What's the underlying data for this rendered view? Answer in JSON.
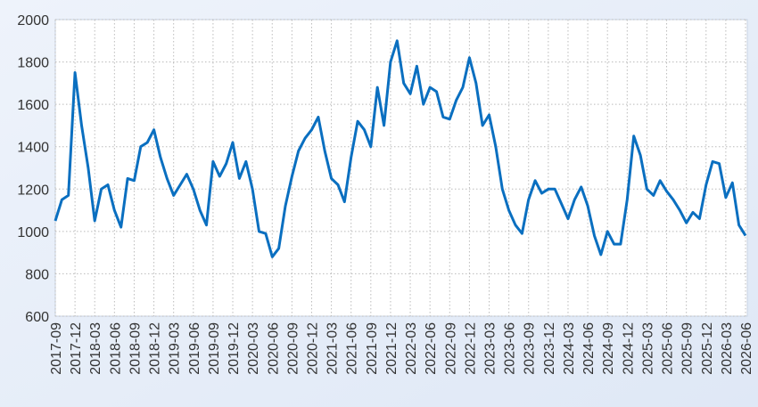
{
  "chart_data": {
    "type": "line",
    "color": "#0a6fc0",
    "grid": true,
    "x": [
      "2017-09",
      "2017-10",
      "2017-11",
      "2017-12",
      "2018-01",
      "2018-02",
      "2018-03",
      "2018-04",
      "2018-05",
      "2018-06",
      "2018-07",
      "2018-08",
      "2018-09",
      "2018-10",
      "2018-11",
      "2018-12",
      "2019-01",
      "2019-02",
      "2019-03",
      "2019-04",
      "2019-05",
      "2019-06",
      "2019-07",
      "2019-08",
      "2019-09",
      "2019-10",
      "2019-11",
      "2019-12",
      "2020-01",
      "2020-02",
      "2020-03",
      "2020-04",
      "2020-05",
      "2020-06",
      "2020-07",
      "2020-08",
      "2020-09",
      "2020-10",
      "2020-11",
      "2020-12",
      "2021-01",
      "2021-02",
      "2021-03",
      "2021-04",
      "2021-05",
      "2021-06",
      "2021-07",
      "2021-08",
      "2021-09",
      "2021-10",
      "2021-11",
      "2021-12",
      "2022-01",
      "2022-02",
      "2022-03",
      "2022-04",
      "2022-05",
      "2022-06",
      "2022-07",
      "2022-08",
      "2022-09",
      "2022-10",
      "2022-11",
      "2022-12",
      "2023-01",
      "2023-02",
      "2023-03",
      "2023-04",
      "2023-05",
      "2023-06",
      "2023-07",
      "2023-08",
      "2023-09",
      "2023-10",
      "2023-11",
      "2023-12",
      "2024-01",
      "2024-02",
      "2024-03",
      "2024-04",
      "2024-05",
      "2024-06",
      "2024-07",
      "2024-08",
      "2024-09",
      "2024-10",
      "2024-11",
      "2024-12",
      "2025-01",
      "2025-02",
      "2025-03",
      "2025-04",
      "2025-05",
      "2025-06",
      "2025-07",
      "2025-08",
      "2025-09",
      "2025-10",
      "2025-11",
      "2025-12",
      "2026-01",
      "2026-02",
      "2026-03",
      "2026-04",
      "2026-05",
      "2026-06"
    ],
    "values": [
      1050,
      1150,
      1170,
      1750,
      1500,
      1300,
      1050,
      1200,
      1220,
      1100,
      1020,
      1250,
      1240,
      1400,
      1420,
      1480,
      1350,
      1250,
      1170,
      1220,
      1270,
      1200,
      1100,
      1030,
      1330,
      1260,
      1320,
      1420,
      1250,
      1330,
      1200,
      1000,
      990,
      880,
      920,
      1120,
      1260,
      1380,
      1440,
      1480,
      1540,
      1380,
      1250,
      1220,
      1140,
      1350,
      1520,
      1480,
      1400,
      1680,
      1500,
      1800,
      1900,
      1700,
      1650,
      1780,
      1600,
      1680,
      1660,
      1540,
      1530,
      1620,
      1680,
      1820,
      1700,
      1500,
      1550,
      1400,
      1200,
      1100,
      1030,
      990,
      1150,
      1240,
      1180,
      1200,
      1200,
      1130,
      1060,
      1150,
      1210,
      1120,
      980,
      890,
      1000,
      940,
      940,
      1150,
      1450,
      1360,
      1200,
      1170,
      1240,
      1190,
      1150,
      1100,
      1040,
      1090,
      1060,
      1220,
      1330,
      1320,
      1160,
      1230,
      1030,
      980
    ],
    "xticks": [
      "2017-09",
      "2017-12",
      "2018-03",
      "2018-06",
      "2018-09",
      "2018-12",
      "2019-03",
      "2019-06",
      "2019-09",
      "2019-12",
      "2020-03",
      "2020-06",
      "2020-09",
      "2020-12",
      "2021-03",
      "2021-06",
      "2021-09",
      "2021-12",
      "2022-03",
      "2022-06",
      "2022-09",
      "2022-12",
      "2023-03",
      "2023-06",
      "2023-09",
      "2023-12",
      "2024-03",
      "2024-06",
      "2024-09",
      "2024-12",
      "2025-03",
      "2025-06",
      "2025-09",
      "2025-12",
      "2026-03",
      "2026-06"
    ],
    "ylim": [
      600,
      2000
    ],
    "yticks": [
      600,
      800,
      1000,
      1200,
      1400,
      1600,
      1800,
      2000
    ]
  }
}
